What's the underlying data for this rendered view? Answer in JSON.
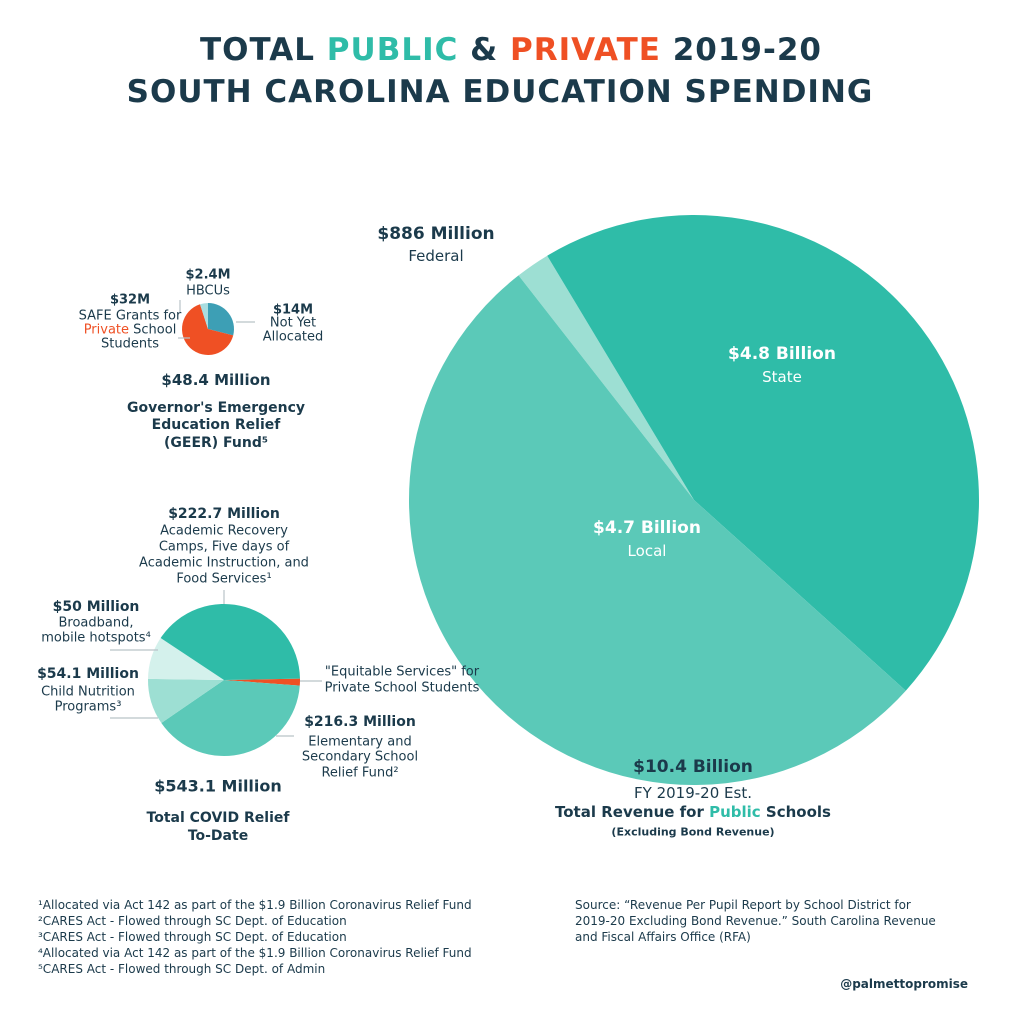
{
  "title": {
    "line1_a": "TOTAL ",
    "line1_public": "PUBLIC",
    "line1_b": " & ",
    "line1_private": "PRIVATE",
    "line1_c": " 2019-20",
    "line2": "SOUTH CAROLINA EDUCATION SPENDING"
  },
  "colors": {
    "navy": "#1b3a4b",
    "public": "#2fbca8",
    "private": "#ef5024",
    "state": "#2fbca8",
    "local": "#5bc9b8",
    "federal": "#9ddfd3",
    "blue": "#3d9fb5"
  },
  "chart_data": [
    {
      "type": "pie",
      "title": "$10.4 Billion",
      "subtitle": [
        "FY 2019-20 Est.",
        "Total Revenue for Public Schools",
        "(Excluding Bond Revenue)"
      ],
      "slices": [
        {
          "label": "Federal",
          "value_label": "$886 Million",
          "value": 0.886,
          "color": "#9ddfd3"
        },
        {
          "label": "State",
          "value_label": "$4.8 Billion",
          "value": 4.8,
          "color": "#2fbca8"
        },
        {
          "label": "Local",
          "value_label": "$4.7 Billion",
          "value": 4.7,
          "color": "#5bc9b8"
        }
      ],
      "unit": "billion USD"
    },
    {
      "type": "pie",
      "title": "$48.4 Million",
      "subtitle": [
        "Governor's Emergency",
        "Education Relief",
        "(GEER) Fund⁵"
      ],
      "slices": [
        {
          "label": "Not Yet Allocated",
          "label_lines": [
            "Not Yet",
            "Allocated"
          ],
          "value_label": "$14M",
          "value": 14,
          "color": "#3d9fb5"
        },
        {
          "label": "SAFE Grants for Private School Students",
          "label_lines": [
            "SAFE Grants for",
            "Private School",
            "Students"
          ],
          "value_label": "$32M",
          "value": 32,
          "color": "#ef5024"
        },
        {
          "label": "HBCUs",
          "label_lines": [
            "HBCUs"
          ],
          "value_label": "$2.4M",
          "value": 2.4,
          "color": "#a9dde0"
        }
      ],
      "unit": "million USD"
    },
    {
      "type": "pie",
      "title": "$543.1 Million",
      "subtitle": [
        "Total COVID Relief",
        "To-Date"
      ],
      "slices": [
        {
          "label": "\"Equitable Services\" for Private School Students",
          "label_lines": [
            "\"Equitable Services\" for",
            "Private School Students"
          ],
          "value_label": "",
          "value": 8,
          "color": "#ef5024"
        },
        {
          "label": "Elementary and Secondary School Relief Fund²",
          "label_lines": [
            "Elementary and",
            "Secondary School",
            "Relief Fund²"
          ],
          "value_label": "$216.3 Million",
          "value": 216.3,
          "color": "#5bc9b8"
        },
        {
          "label": "Child Nutrition Programs³",
          "label_lines": [
            "Child Nutrition",
            "Programs³"
          ],
          "value_label": "$54.1 Million",
          "value": 54.1,
          "color": "#9ddfd3"
        },
        {
          "label": "Broadband, mobile hotspots⁴",
          "label_lines": [
            "Broadband,",
            "mobile hotspots⁴"
          ],
          "value_label": "$50 Million",
          "value": 50,
          "color": "#d4f1ec"
        },
        {
          "label": "Academic Recovery Camps, Five days of Academic Instruction, and Food Services¹",
          "label_lines": [
            "Academic Recovery",
            "Camps, Five days of",
            "Academic Instruction, and",
            "Food Services¹"
          ],
          "value_label": "$222.7 Million",
          "value": 222.7,
          "color": "#2fbca8"
        }
      ],
      "unit": "million USD"
    }
  ],
  "footnotes": [
    "¹Allocated via Act 142 as part of the $1.9 Billion Coronavirus Relief Fund",
    "²CARES Act  - Flowed through SC Dept. of Education",
    "³CARES Act  - Flowed through SC Dept. of Education",
    "⁴Allocated via Act 142 as part of the $1.9 Billion Coronavirus Relief Fund",
    "⁵CARES Act - Flowed through SC Dept. of Admin"
  ],
  "source": [
    "Source: “Revenue Per Pupil Report by School District for",
    "2019-20 Excluding Bond Revenue.” South Carolina Revenue",
    "and Fiscal Affairs Office (RFA)"
  ],
  "handle": "@palmettopromise",
  "public_word": "Public",
  "private_word": "Private",
  "revenue_a": "Total Revenue for ",
  "revenue_b": " Schools",
  "safe_b": " School"
}
